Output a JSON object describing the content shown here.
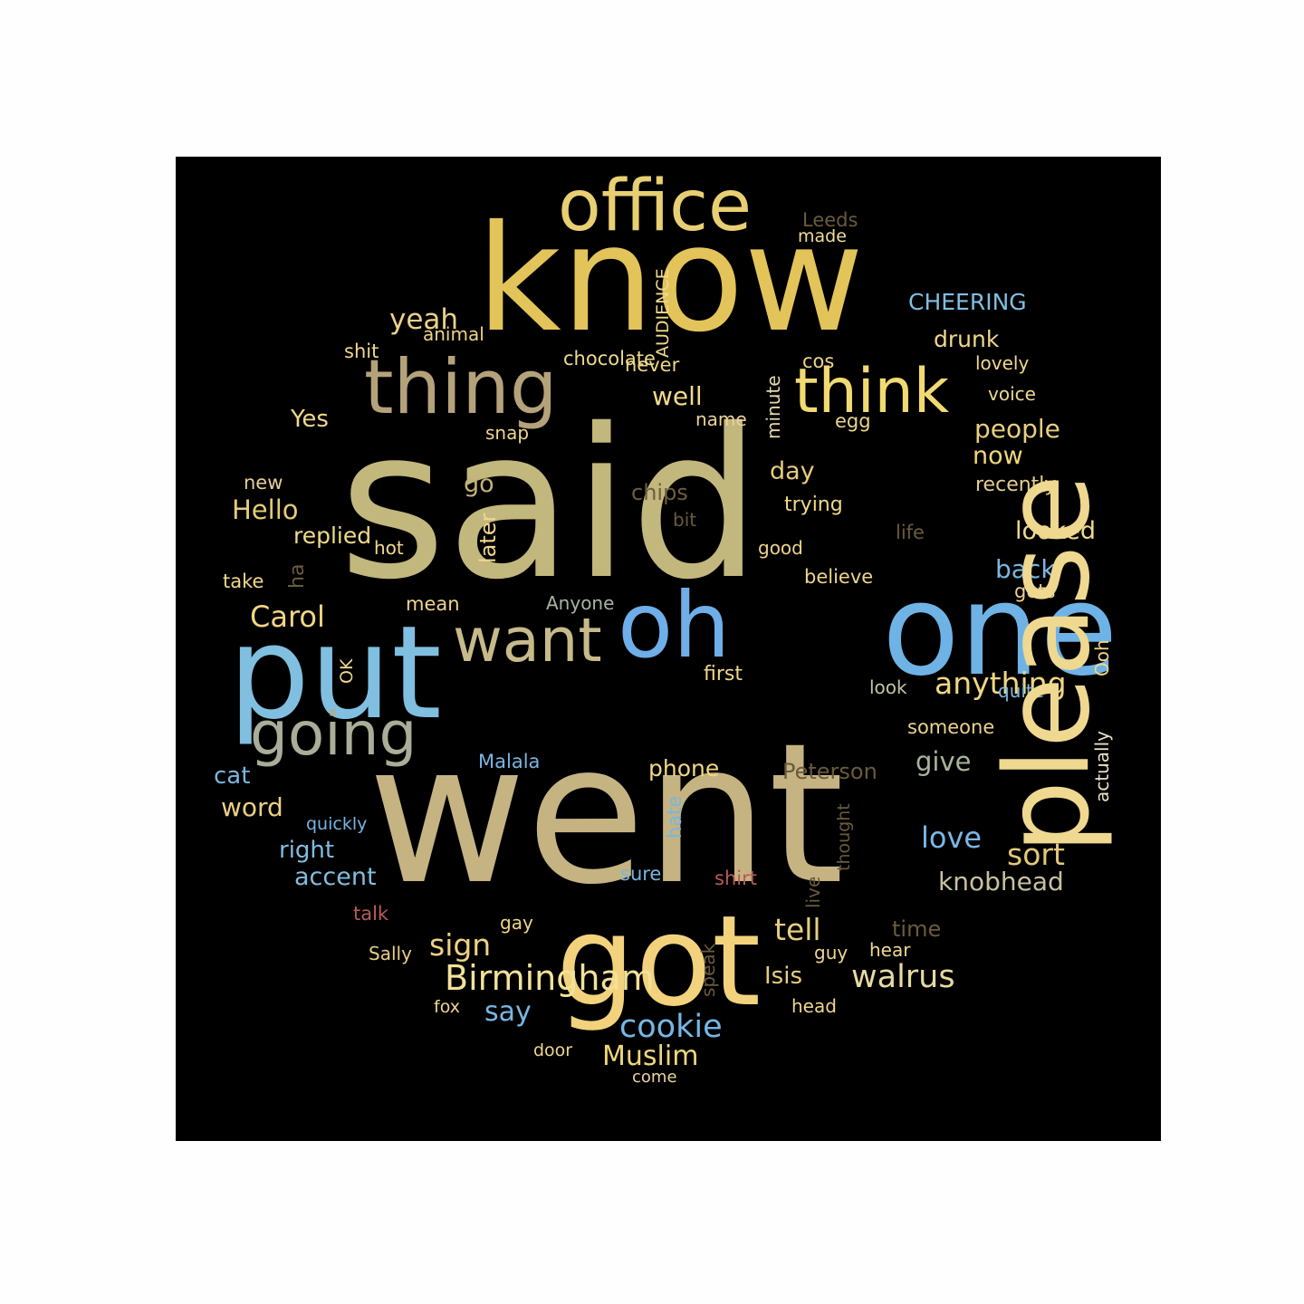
{
  "words": [
    {
      "text": "said",
      "color": "#c2b77d"
    },
    {
      "text": "went",
      "color": "#c5b382"
    },
    {
      "text": "know",
      "color": "#e2c45a"
    },
    {
      "text": "got",
      "color": "#f2d27c"
    },
    {
      "text": "put",
      "color": "#80bfe0"
    },
    {
      "text": "one",
      "color": "#6fb3e6"
    },
    {
      "text": "oh",
      "color": "#6faee8"
    },
    {
      "text": "thing",
      "color": "#b4a27a"
    },
    {
      "text": "office",
      "color": "#e8cf72"
    },
    {
      "text": "think",
      "color": "#f2da72"
    },
    {
      "text": "want",
      "color": "#c7ba8a"
    },
    {
      "text": "going",
      "color": "#a9ae98"
    },
    {
      "text": "cookie",
      "color": "#76b7e6"
    },
    {
      "text": "Birmingham",
      "color": "#f2e29a"
    },
    {
      "text": "Carol",
      "color": "#f2d586"
    },
    {
      "text": "knobhead",
      "color": "#c8c0a0"
    },
    {
      "text": "Muslim",
      "color": "#eed77c"
    },
    {
      "text": "walrus",
      "color": "#e6d9a2"
    },
    {
      "text": "sign",
      "color": "#eed285"
    },
    {
      "text": "tell",
      "color": "#e8ce7e"
    },
    {
      "text": "sort",
      "color": "#e3c87c"
    },
    {
      "text": "love",
      "color": "#79b8e6"
    },
    {
      "text": "give",
      "color": "#a8b49a"
    },
    {
      "text": "back",
      "color": "#7ab8e2"
    },
    {
      "text": "looked",
      "color": "#efd98c"
    },
    {
      "text": "people",
      "color": "#e8cf80"
    },
    {
      "text": "now",
      "color": "#f0d878"
    },
    {
      "text": "anything",
      "color": "#f0d683"
    },
    {
      "text": "say",
      "color": "#77b6e4"
    },
    {
      "text": "yeah",
      "color": "#ecd28a"
    },
    {
      "text": "well",
      "color": "#f2dc8a"
    },
    {
      "text": "Yes",
      "color": "#f0d98a"
    },
    {
      "text": "Hello",
      "color": "#e6cb78"
    },
    {
      "text": "Isis",
      "color": "#e6cd82"
    },
    {
      "text": "day",
      "color": "#e8cb80"
    },
    {
      "text": "go",
      "color": "#c4b078"
    },
    {
      "text": "chips",
      "color": "#6e5e40"
    },
    {
      "text": "replied",
      "color": "#f0da8a"
    },
    {
      "text": "word",
      "color": "#ecd082"
    },
    {
      "text": "right",
      "color": "#7fbde2"
    },
    {
      "text": "accent",
      "color": "#82bddf"
    },
    {
      "text": "cat",
      "color": "#7ab6dc"
    },
    {
      "text": "CHEERING",
      "color": "#80bee2"
    },
    {
      "text": "drunk",
      "color": "#f2d88c"
    },
    {
      "text": "phone",
      "color": "#f0d880"
    },
    {
      "text": "Peterson",
      "color": "#6a5a3d"
    },
    {
      "text": "time",
      "color": "#6a5a3f"
    },
    {
      "text": "someone",
      "color": "#ecd48a"
    },
    {
      "text": "Malala",
      "color": "#78b6e2"
    },
    {
      "text": "Leeds",
      "color": "#6a5a3d"
    },
    {
      "text": "made",
      "color": "#f2dc96"
    },
    {
      "text": "cos",
      "color": "#efd58a"
    },
    {
      "text": "lovely",
      "color": "#f0d88c"
    },
    {
      "text": "voice",
      "color": "#efd88e"
    },
    {
      "text": "egg",
      "color": "#ead38a"
    },
    {
      "text": "name",
      "color": "#ebd39a"
    },
    {
      "text": "never",
      "color": "#efd58a"
    },
    {
      "text": "chocolate",
      "color": "#f0da8e"
    },
    {
      "text": "shit",
      "color": "#f0d88a"
    },
    {
      "text": "animal",
      "color": "#ecd38a"
    },
    {
      "text": "snap",
      "color": "#efd68e"
    },
    {
      "text": "new",
      "color": "#e6d09a"
    },
    {
      "text": "recently",
      "color": "#e3cd8c"
    },
    {
      "text": "trying",
      "color": "#f0da88"
    },
    {
      "text": "life",
      "color": "#6a5a3d"
    },
    {
      "text": "bit",
      "color": "#6a5a3d"
    },
    {
      "text": "good",
      "color": "#efd48a"
    },
    {
      "text": "believe",
      "color": "#eed58a"
    },
    {
      "text": "hot",
      "color": "#f2da8e"
    },
    {
      "text": "take",
      "color": "#efd88e"
    },
    {
      "text": "mean",
      "color": "#efd68e"
    },
    {
      "text": "Anyone",
      "color": "#a8b4a0"
    },
    {
      "text": "gets",
      "color": "#ecd290"
    },
    {
      "text": "first",
      "color": "#f0d888"
    },
    {
      "text": "look",
      "color": "#c8c2a8"
    },
    {
      "text": "quite",
      "color": "#78b8e2"
    },
    {
      "text": "quickly",
      "color": "#76b5e2"
    },
    {
      "text": "sure",
      "color": "#78b6de"
    },
    {
      "text": "shirt",
      "color": "#b85a5a"
    },
    {
      "text": "talk",
      "color": "#b85a5a"
    },
    {
      "text": "gay",
      "color": "#efd58a"
    },
    {
      "text": "Sally",
      "color": "#e6cd86"
    },
    {
      "text": "guy",
      "color": "#efd590"
    },
    {
      "text": "hear",
      "color": "#f0d890"
    },
    {
      "text": "head",
      "color": "#efd690"
    },
    {
      "text": "fox",
      "color": "#efd590"
    },
    {
      "text": "door",
      "color": "#efd690"
    },
    {
      "text": "come",
      "color": "#ecd6a0"
    },
    {
      "text": "minute",
      "color": "#e8d8b0"
    },
    {
      "text": "AUDIENCE",
      "color": "#f0d88c"
    },
    {
      "text": "later",
      "color": "#efd68e"
    },
    {
      "text": "ha",
      "color": "#6a5a3d"
    },
    {
      "text": "OK",
      "color": "#f0d890"
    },
    {
      "text": "hate",
      "color": "#78b6e0"
    },
    {
      "text": "live",
      "color": "#6a5a3d"
    },
    {
      "text": "thought",
      "color": "#6a5a3d"
    },
    {
      "text": "speak",
      "color": "#6a5a3d"
    },
    {
      "text": "Ooh",
      "color": "#efd48a"
    },
    {
      "text": "please",
      "color": "#efd890"
    },
    {
      "text": "actually",
      "color": "#e8e0c8"
    }
  ]
}
